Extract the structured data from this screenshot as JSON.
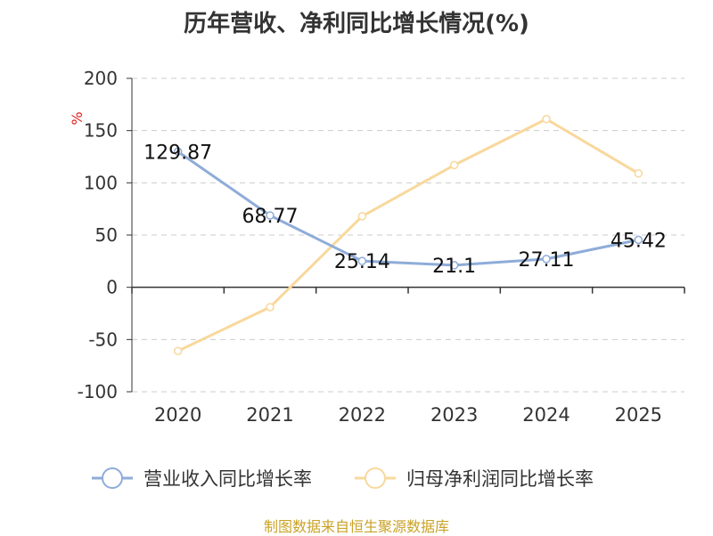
{
  "chart_data": {
    "type": "line",
    "title": "历年营收、净利同比增长情况(%)",
    "ylabel": "%",
    "categories": [
      "2020",
      "2021",
      "2022",
      "2023",
      "2024",
      "2025"
    ],
    "ylim": [
      -100,
      200
    ],
    "yticks": [
      -100,
      -50,
      0,
      50,
      100,
      150,
      200
    ],
    "grid": true,
    "legend_position": "bottom",
    "series": [
      {
        "name": "营业收入同比增长率",
        "color": "#8eacd8",
        "values": [
          129.87,
          68.77,
          25.14,
          21.1,
          27.11,
          45.42
        ],
        "data_labels": [
          "129.87",
          "68.77",
          "25.14",
          "21.1",
          "27.11",
          "45.42"
        ]
      },
      {
        "name": "归母净利润同比增长率",
        "color": "#f8d89c",
        "values": [
          -61,
          -19,
          68,
          117,
          161,
          109
        ]
      }
    ]
  },
  "footer": "制图数据来自恒生聚源数据库"
}
